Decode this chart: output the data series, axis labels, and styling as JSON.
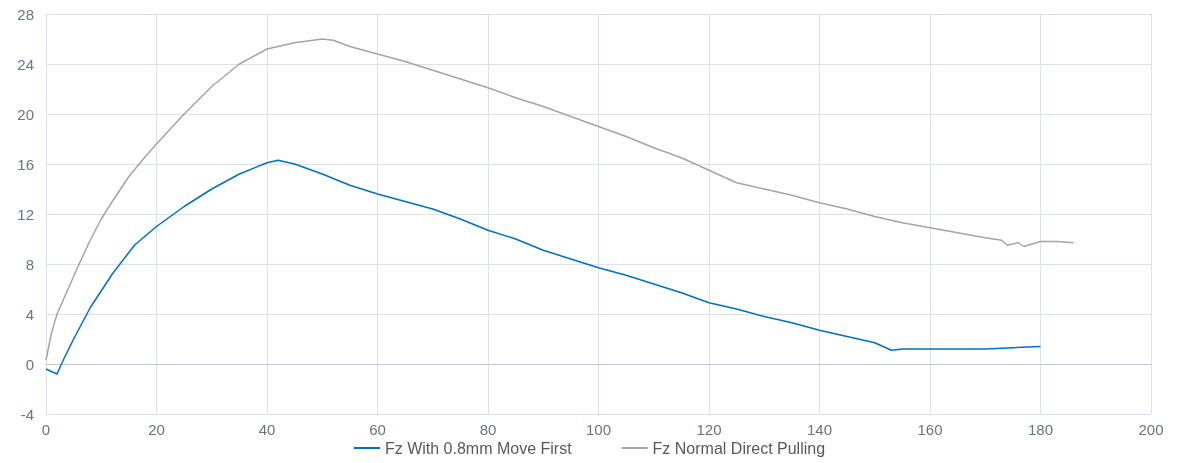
{
  "chart_data": {
    "type": "line",
    "xlim": [
      0,
      200
    ],
    "xticks": [
      0,
      20,
      40,
      60,
      80,
      100,
      120,
      140,
      160,
      180,
      200
    ],
    "ylim": [
      -4,
      28
    ],
    "yticks": [
      -4,
      0,
      4,
      8,
      12,
      16,
      20,
      24,
      28
    ],
    "grid": true,
    "legend": "bottom",
    "marker": "none",
    "line_style": "solid",
    "series": [
      {
        "name": "Fz With 0.8mm Move First",
        "color": "#0070c0",
        "x": [
          0,
          1,
          2,
          3,
          5,
          8,
          12,
          16,
          20,
          25,
          30,
          35,
          40,
          42,
          45,
          50,
          55,
          60,
          65,
          70,
          75,
          80,
          85,
          90,
          95,
          100,
          105,
          110,
          115,
          120,
          125,
          130,
          135,
          140,
          145,
          150,
          153,
          155,
          160,
          165,
          170,
          175,
          180
        ],
        "values": [
          -0.4,
          -0.6,
          -0.8,
          0.2,
          2,
          4.5,
          7.2,
          9.5,
          11,
          12.6,
          14,
          15.2,
          16.1,
          16.3,
          16,
          15.2,
          14.3,
          13.6,
          13,
          12.4,
          11.6,
          10.7,
          10,
          9.1,
          8.4,
          7.7,
          7.1,
          6.4,
          5.7,
          4.9,
          4.4,
          3.8,
          3.3,
          2.7,
          2.2,
          1.7,
          1.1,
          1.2,
          1.2,
          1.2,
          1.2,
          1.3,
          1.4
        ]
      },
      {
        "name": "Fz Normal Direct Pulling",
        "color": "#a5a5a5",
        "x": [
          0,
          1,
          2,
          4,
          6,
          8,
          10,
          12,
          15,
          18,
          20,
          25,
          30,
          35,
          40,
          45,
          50,
          52,
          55,
          60,
          65,
          70,
          75,
          80,
          85,
          90,
          95,
          100,
          105,
          110,
          115,
          120,
          125,
          130,
          135,
          140,
          145,
          150,
          155,
          160,
          165,
          170,
          173,
          174,
          176,
          177,
          180,
          183,
          186
        ],
        "values": [
          0.3,
          2.5,
          4,
          6,
          8,
          9.9,
          11.6,
          13,
          15,
          16.6,
          17.6,
          20,
          22.2,
          24,
          25.2,
          25.7,
          26,
          25.9,
          25.4,
          24.8,
          24.2,
          23.5,
          22.8,
          22.1,
          21.3,
          20.6,
          19.8,
          19,
          18.2,
          17.3,
          16.5,
          15.5,
          14.5,
          14,
          13.5,
          12.9,
          12.4,
          11.8,
          11.3,
          10.9,
          10.5,
          10.1,
          9.9,
          9.5,
          9.7,
          9.4,
          9.8,
          9.8,
          9.7
        ]
      }
    ]
  }
}
